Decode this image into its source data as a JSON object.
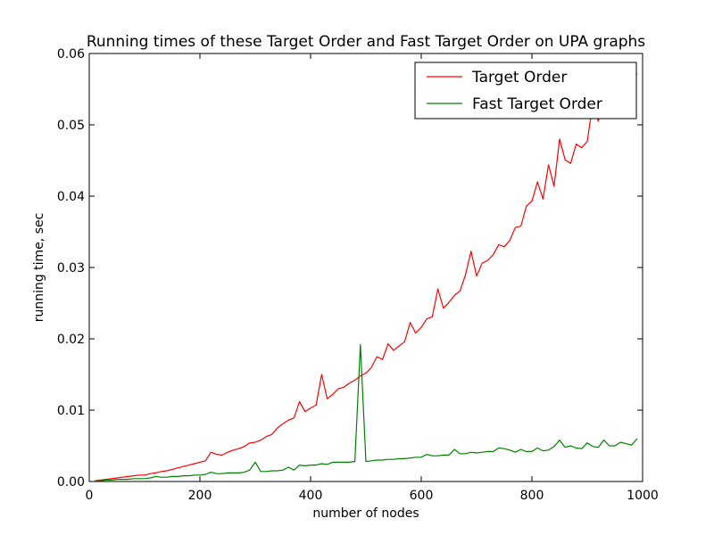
{
  "chart_data": {
    "type": "line",
    "title": "Running times of these Target Order and Fast Target Order on UPA graphs",
    "xlabel": "number of nodes",
    "ylabel": "running time, sec",
    "xlim": [
      0,
      1000
    ],
    "ylim": [
      0,
      0.06
    ],
    "xticks": [
      0,
      200,
      400,
      600,
      800,
      1000
    ],
    "yticks": [
      0.0,
      0.01,
      0.02,
      0.03,
      0.04,
      0.05,
      0.06
    ],
    "xtick_labels": [
      "0",
      "200",
      "400",
      "600",
      "800",
      "1000"
    ],
    "ytick_labels": [
      "0.00",
      "0.01",
      "0.02",
      "0.03",
      "0.04",
      "0.05",
      "0.06"
    ],
    "grid": false,
    "legend_position": "top-right",
    "series": [
      {
        "name": "Target Order",
        "color": "#ff0000",
        "x": [
          10,
          20,
          30,
          40,
          50,
          60,
          70,
          80,
          90,
          100,
          110,
          120,
          130,
          140,
          150,
          160,
          170,
          180,
          190,
          200,
          210,
          220,
          230,
          240,
          250,
          260,
          270,
          280,
          290,
          300,
          310,
          320,
          330,
          340,
          350,
          360,
          370,
          380,
          390,
          400,
          410,
          420,
          430,
          440,
          450,
          460,
          470,
          480,
          490,
          500,
          510,
          520,
          530,
          540,
          550,
          560,
          570,
          580,
          590,
          600,
          610,
          620,
          630,
          640,
          650,
          660,
          670,
          680,
          690,
          700,
          710,
          720,
          730,
          740,
          750,
          760,
          770,
          780,
          790,
          800,
          810,
          820,
          830,
          840,
          850,
          860,
          870,
          880,
          890,
          900,
          910,
          920,
          930,
          940,
          950,
          960,
          970,
          980,
          990
        ],
        "values": [
          0.0001,
          0.0002,
          0.0003,
          0.0004,
          0.0005,
          0.0006,
          0.0007,
          0.0008,
          0.0009,
          0.0009,
          0.0011,
          0.0012,
          0.0014,
          0.0015,
          0.0017,
          0.0019,
          0.0021,
          0.0023,
          0.0025,
          0.0027,
          0.0029,
          0.0041,
          0.0038,
          0.0037,
          0.0041,
          0.0044,
          0.0046,
          0.0049,
          0.0054,
          0.0055,
          0.0058,
          0.0063,
          0.0066,
          0.0075,
          0.0081,
          0.0086,
          0.0089,
          0.0112,
          0.0098,
          0.0103,
          0.0107,
          0.015,
          0.0116,
          0.0122,
          0.013,
          0.0132,
          0.0138,
          0.0142,
          0.0148,
          0.0152,
          0.016,
          0.0175,
          0.0171,
          0.0193,
          0.0184,
          0.019,
          0.0196,
          0.0223,
          0.0208,
          0.0216,
          0.0228,
          0.0231,
          0.027,
          0.0243,
          0.0251,
          0.0261,
          0.0267,
          0.029,
          0.0323,
          0.0288,
          0.0306,
          0.031,
          0.0318,
          0.0332,
          0.0329,
          0.0338,
          0.0356,
          0.0358,
          0.0386,
          0.0393,
          0.042,
          0.0396,
          0.0444,
          0.0414,
          0.048,
          0.0451,
          0.0446,
          0.0473,
          0.0468,
          0.0477,
          0.053,
          0.0505,
          0.055,
          0.0543,
          0.056,
          0.0547,
          0.057,
          0.0578,
          0.0571
        ]
      },
      {
        "name": "Fast Target Order",
        "color": "#008000",
        "x": [
          10,
          20,
          30,
          40,
          50,
          60,
          70,
          80,
          90,
          100,
          110,
          120,
          130,
          140,
          150,
          160,
          170,
          180,
          190,
          200,
          210,
          220,
          230,
          240,
          250,
          260,
          270,
          280,
          290,
          300,
          310,
          320,
          330,
          340,
          350,
          360,
          370,
          380,
          390,
          400,
          410,
          420,
          430,
          440,
          450,
          460,
          470,
          480,
          490,
          500,
          510,
          520,
          530,
          540,
          550,
          560,
          570,
          580,
          590,
          600,
          610,
          620,
          630,
          640,
          650,
          660,
          670,
          680,
          690,
          700,
          710,
          720,
          730,
          740,
          750,
          760,
          770,
          780,
          790,
          800,
          810,
          820,
          830,
          840,
          850,
          860,
          870,
          880,
          890,
          900,
          910,
          920,
          930,
          940,
          950,
          960,
          970,
          980,
          990
        ],
        "values": [
          0.0001,
          0.0001,
          0.0002,
          0.0002,
          0.0003,
          0.0003,
          0.0003,
          0.0004,
          0.0004,
          0.0004,
          0.0005,
          0.0007,
          0.0006,
          0.0006,
          0.0007,
          0.0007,
          0.0008,
          0.0008,
          0.0009,
          0.0009,
          0.001,
          0.0013,
          0.0011,
          0.0011,
          0.0012,
          0.0012,
          0.0012,
          0.0013,
          0.0016,
          0.0027,
          0.0014,
          0.0014,
          0.0015,
          0.0015,
          0.0016,
          0.002,
          0.0016,
          0.0023,
          0.0022,
          0.0023,
          0.0023,
          0.0025,
          0.0024,
          0.0027,
          0.0027,
          0.0027,
          0.0027,
          0.0028,
          0.0192,
          0.0028,
          0.0029,
          0.003,
          0.003,
          0.0031,
          0.0031,
          0.0032,
          0.0032,
          0.0033,
          0.0034,
          0.0034,
          0.0038,
          0.0036,
          0.0036,
          0.0037,
          0.0037,
          0.0045,
          0.0039,
          0.0039,
          0.0041,
          0.004,
          0.0041,
          0.0042,
          0.0042,
          0.0047,
          0.0046,
          0.0044,
          0.0041,
          0.0045,
          0.0042,
          0.0042,
          0.0047,
          0.0043,
          0.0044,
          0.0049,
          0.0058,
          0.0048,
          0.005,
          0.0047,
          0.0046,
          0.0054,
          0.0049,
          0.0048,
          0.0058,
          0.005,
          0.005,
          0.0055,
          0.0053,
          0.0051,
          0.006
        ]
      }
    ]
  }
}
